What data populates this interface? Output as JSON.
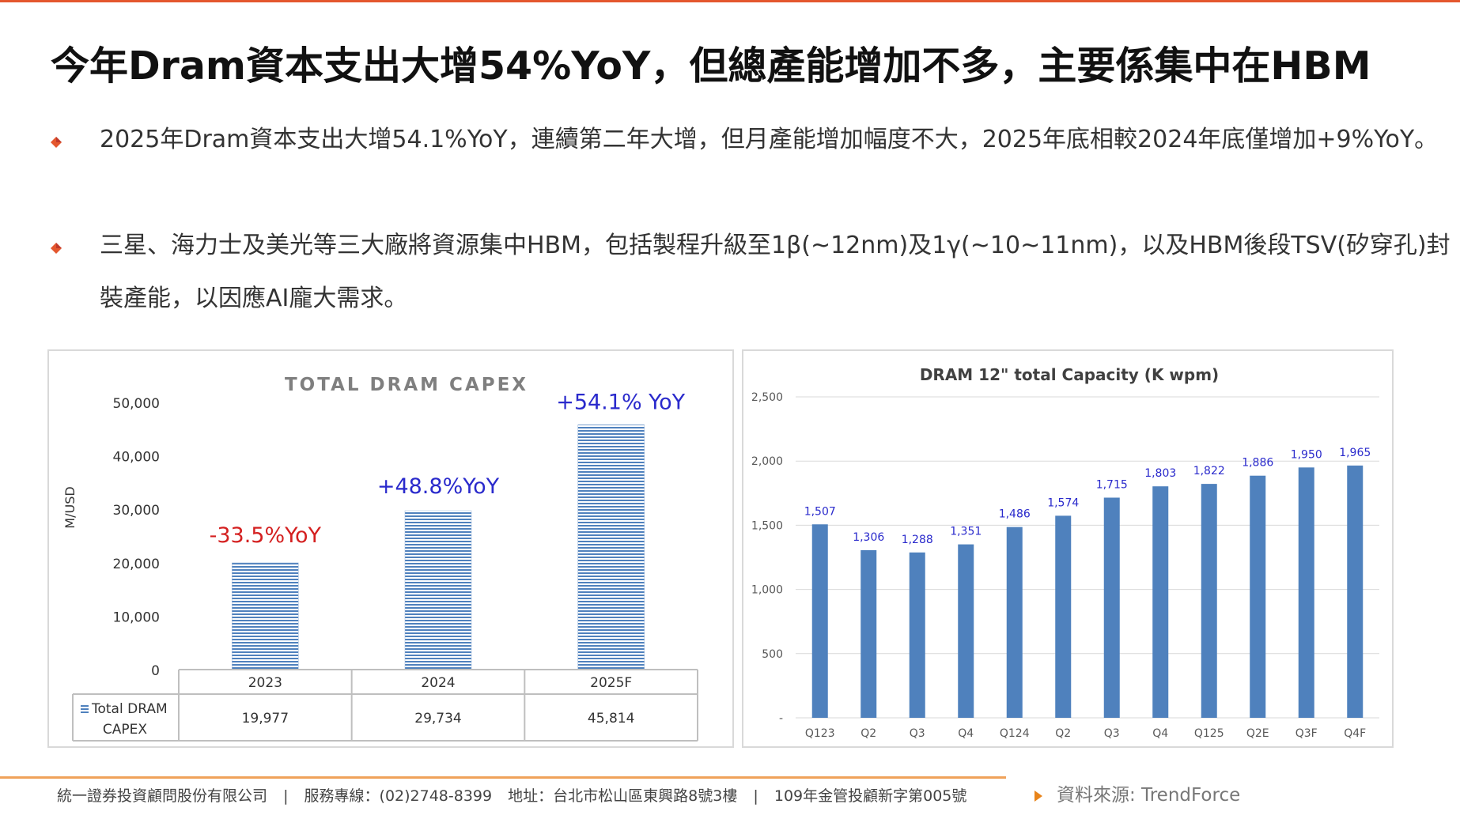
{
  "title": "今年Dram資本支出大增54%YoY，但總產能增加不多，主要係集中在HBM",
  "bullets": [
    "2025年Dram資本支出大增54.1%YoY，連續第二年大增，但月產能增加幅度不大，2025年底相較2024年底僅增加+9%YoY。",
    "三星、海力士及美光等三大廠將資源集中HBM，包括製程升級至1β(~12nm)及1γ(~10~11nm)，以及HBM後段TSV(矽穿孔)封裝產能，以因應AI龐大需求。"
  ],
  "colors": {
    "accent": "#e4572e",
    "bar_blue": "#4f81bd",
    "annot_red": "#d42020",
    "annot_blue": "#2a2acc"
  },
  "chart_data": [
    {
      "type": "bar",
      "title": "TOTAL DRAM CAPEX",
      "ylabel": "M/USD",
      "xlabel": "",
      "categories": [
        "2023",
        "2024",
        "2025F"
      ],
      "series": [
        {
          "name": "Total DRAM CAPEX",
          "values": [
            19977,
            29734,
            45814
          ]
        }
      ],
      "data_table": {
        "row_label": "Total DRAM CAPEX",
        "values": [
          "19,977",
          "29,734",
          "45,814"
        ]
      },
      "ylim": [
        0,
        50000
      ],
      "yticks": [
        "0",
        "10,000",
        "20,000",
        "30,000",
        "40,000",
        "50,000"
      ],
      "annotations": [
        "-33.5%YoY",
        "+48.8%YoY",
        "+54.1% YoY"
      ],
      "grid": false,
      "legend": "data-table"
    },
    {
      "type": "bar",
      "title": "DRAM 12\" total Capacity (K wpm)",
      "xlabel": "",
      "ylabel": "",
      "categories": [
        "Q123",
        "Q2",
        "Q3",
        "Q4",
        "Q124",
        "Q2",
        "Q3",
        "Q4",
        "Q125",
        "Q2E",
        "Q3F",
        "Q4F"
      ],
      "series": [
        {
          "values": [
            1507,
            1306,
            1288,
            1351,
            1486,
            1574,
            1715,
            1803,
            1822,
            1886,
            1950,
            1965
          ]
        }
      ],
      "value_labels": [
        "1,507",
        "1,306",
        "1,288",
        "1,351",
        "1,486",
        "1,574",
        "1,715",
        "1,803",
        "1,822",
        "1,886",
        "1,950",
        "1,965"
      ],
      "ylim": [
        0,
        2500
      ],
      "yticks": [
        "-",
        "500",
        "1,000",
        "1,500",
        "2,000",
        "2,500"
      ],
      "grid": true,
      "legend": "none"
    }
  ],
  "footer": {
    "company": "統一證券投資顧問股份有限公司",
    "sep": "|",
    "phone_label": "服務專線：",
    "phone": "(02)2748-8399",
    "address_label": "地址：",
    "address": "台北市松山區東興路8號3樓",
    "license": "109年金管投顧新字第005號"
  },
  "source": "資料來源: TrendForce"
}
